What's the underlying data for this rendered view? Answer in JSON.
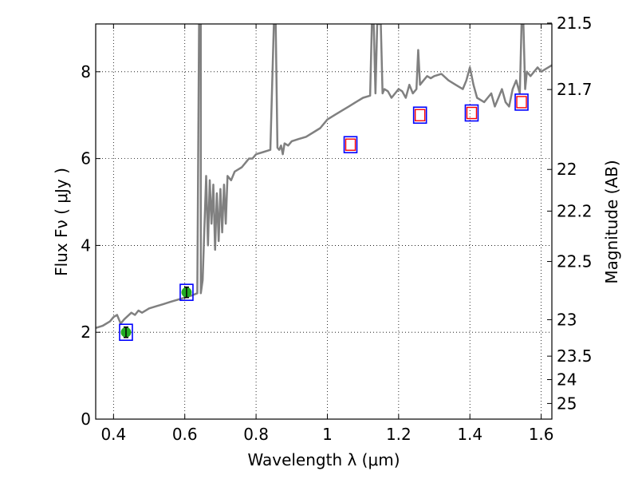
{
  "chart_data": {
    "type": "line",
    "xlabel": "Wavelength  λ (μm)",
    "ylabel": "Flux  Fν  ( μJy )",
    "y2label": "Magnitude (AB)",
    "xlim": [
      0.35,
      1.63
    ],
    "ylim": [
      0,
      9.1
    ],
    "grid": true,
    "x_ticks": [
      0.4,
      0.6,
      0.8,
      1.0,
      1.2,
      1.4,
      1.6
    ],
    "x_tick_labels": [
      "0.4",
      "0.6",
      "0.8",
      "1",
      "1.2",
      "1.4",
      "1.6"
    ],
    "y_ticks": [
      0,
      2,
      4,
      6,
      8
    ],
    "y_tick_labels": [
      "0",
      "2",
      "4",
      "6",
      "8"
    ],
    "y2_ticks": [
      {
        "label": "21.5",
        "flux": 9.12
      },
      {
        "label": "21.7",
        "flux": 7.59
      },
      {
        "label": "22",
        "flux": 5.75
      },
      {
        "label": "22.2",
        "flux": 4.79
      },
      {
        "label": "22.5",
        "flux": 3.63
      },
      {
        "label": "23",
        "flux": 2.29
      },
      {
        "label": "23.5",
        "flux": 1.45
      },
      {
        "label": "24",
        "flux": 0.91
      },
      {
        "label": "25",
        "flux": 0.36
      }
    ],
    "colors": {
      "spectrum": "#808080",
      "observed_marker": "#22aa22",
      "model_box": "#0000ff",
      "upper_box": "#ff0000",
      "errorbar": "#000000",
      "grid": "#000000"
    },
    "spectrum": {
      "x": [
        0.35,
        0.37,
        0.39,
        0.4,
        0.41,
        0.42,
        0.43,
        0.45,
        0.46,
        0.47,
        0.48,
        0.5,
        0.52,
        0.54,
        0.56,
        0.58,
        0.6,
        0.62,
        0.635,
        0.64,
        0.645,
        0.645,
        0.65,
        0.66,
        0.665,
        0.67,
        0.675,
        0.68,
        0.685,
        0.69,
        0.695,
        0.7,
        0.705,
        0.71,
        0.715,
        0.72,
        0.73,
        0.74,
        0.75,
        0.76,
        0.77,
        0.78,
        0.79,
        0.8,
        0.82,
        0.84,
        0.85,
        0.855,
        0.86,
        0.865,
        0.87,
        0.875,
        0.88,
        0.89,
        0.9,
        0.92,
        0.94,
        0.96,
        0.98,
        1.0,
        1.02,
        1.04,
        1.06,
        1.08,
        1.1,
        1.12,
        1.125,
        1.13,
        1.135,
        1.14,
        1.15,
        1.155,
        1.16,
        1.17,
        1.18,
        1.19,
        1.2,
        1.21,
        1.22,
        1.23,
        1.24,
        1.25,
        1.255,
        1.26,
        1.27,
        1.28,
        1.29,
        1.3,
        1.32,
        1.34,
        1.36,
        1.38,
        1.39,
        1.4,
        1.41,
        1.42,
        1.44,
        1.46,
        1.47,
        1.48,
        1.49,
        1.5,
        1.51,
        1.52,
        1.53,
        1.54,
        1.545,
        1.55,
        1.555,
        1.56,
        1.57,
        1.58,
        1.59,
        1.6,
        1.61,
        1.62,
        1.63
      ],
      "y": [
        2.1,
        2.15,
        2.25,
        2.35,
        2.4,
        2.2,
        2.3,
        2.45,
        2.4,
        2.5,
        2.45,
        2.55,
        2.6,
        2.65,
        2.7,
        2.75,
        2.8,
        2.85,
        2.9,
        9.1,
        9.1,
        2.9,
        3.2,
        5.6,
        4.0,
        5.5,
        4.5,
        5.4,
        3.9,
        5.2,
        4.1,
        5.3,
        4.3,
        5.4,
        4.5,
        5.6,
        5.5,
        5.7,
        5.75,
        5.8,
        5.9,
        6.0,
        6.0,
        6.1,
        6.15,
        6.2,
        9.1,
        9.1,
        6.25,
        6.2,
        6.3,
        6.1,
        6.35,
        6.3,
        6.4,
        6.45,
        6.5,
        6.6,
        6.7,
        6.9,
        7.0,
        7.1,
        7.2,
        7.3,
        7.4,
        7.45,
        9.1,
        9.1,
        7.5,
        9.1,
        9.1,
        7.5,
        7.6,
        7.55,
        7.4,
        7.5,
        7.6,
        7.55,
        7.4,
        7.7,
        7.5,
        7.6,
        8.5,
        7.7,
        7.8,
        7.9,
        7.85,
        7.9,
        7.95,
        7.8,
        7.7,
        7.6,
        7.8,
        8.1,
        7.7,
        7.4,
        7.3,
        7.5,
        7.2,
        7.4,
        7.6,
        7.3,
        7.2,
        7.6,
        7.8,
        7.5,
        9.1,
        9.1,
        7.6,
        8.0,
        7.9,
        8.0,
        8.1,
        8.0,
        8.05,
        8.1,
        8.15
      ]
    },
    "observed_points": [
      {
        "x": 0.435,
        "y": 2.0,
        "err": 0.12
      },
      {
        "x": 0.605,
        "y": 2.92,
        "err": 0.12
      }
    ],
    "model_points": [
      {
        "x": 0.435,
        "y": 2.0
      },
      {
        "x": 0.605,
        "y": 2.92
      },
      {
        "x": 1.065,
        "y": 6.32
      },
      {
        "x": 1.26,
        "y": 7.0
      },
      {
        "x": 1.405,
        "y": 7.05
      },
      {
        "x": 1.545,
        "y": 7.3
      }
    ],
    "upper_points": [
      {
        "x": 1.065,
        "y": 6.32
      },
      {
        "x": 1.26,
        "y": 7.0
      },
      {
        "x": 1.405,
        "y": 7.05
      },
      {
        "x": 1.545,
        "y": 7.3
      }
    ]
  }
}
